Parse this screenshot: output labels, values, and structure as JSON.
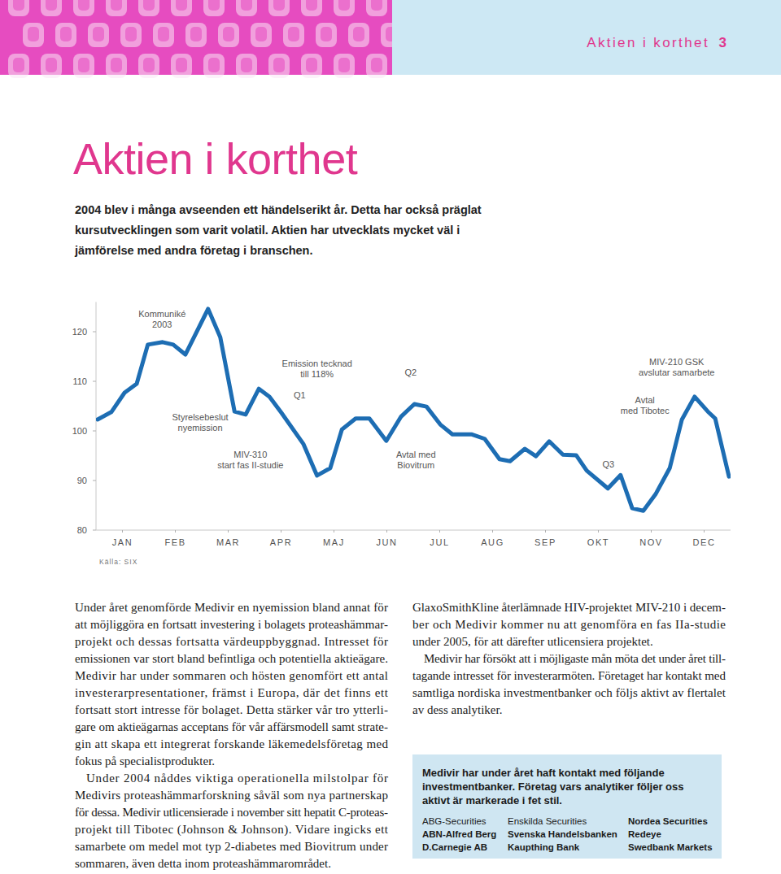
{
  "header": {
    "section": "Aktien i korthet",
    "page": "3"
  },
  "title": "Aktien i korthet",
  "intro": [
    "2004 blev i många avseenden ett händelserikt år. Detta har också präglat",
    "kursutvecklingen som varit volatil. Aktien har utvecklats mycket väl i",
    "jämförelse med andra företag i branschen."
  ],
  "chart_data": {
    "type": "line",
    "color": "#1d6db3",
    "x": [
      0.03,
      0.29,
      0.54,
      0.77,
      0.98,
      1.26,
      1.46,
      1.69,
      2.12,
      2.35,
      2.62,
      2.83,
      3.08,
      3.28,
      3.51,
      3.92,
      4.18,
      4.43,
      4.65,
      4.91,
      5.17,
      5.49,
      5.77,
      6.02,
      6.25,
      6.51,
      6.74,
      7.11,
      7.35,
      7.63,
      7.83,
      8.11,
      8.32,
      8.57,
      8.83,
      9.08,
      9.28,
      9.68,
      9.92,
      10.14,
      10.35,
      10.58,
      10.85,
      11.08,
      11.32,
      11.57,
      11.71,
      11.97
    ],
    "values": [
      102.3,
      103.8,
      107.7,
      109.5,
      117.4,
      117.9,
      117.4,
      115.4,
      124.6,
      118.9,
      103.9,
      103.3,
      108.5,
      106.9,
      103.6,
      97.4,
      91.0,
      92.5,
      100.3,
      102.5,
      102.5,
      98.0,
      102.9,
      105.4,
      104.9,
      101.3,
      99.3,
      99.3,
      98.4,
      94.3,
      93.9,
      96.4,
      94.9,
      97.9,
      95.2,
      95.1,
      92.0,
      88.4,
      91.1,
      84.4,
      83.9,
      87.2,
      92.5,
      102.3,
      106.9,
      103.9,
      102.5,
      90.8
    ],
    "xlim": [
      0,
      12
    ],
    "xticks": [
      {
        "value": 0.5,
        "label": "JAN"
      },
      {
        "value": 1.5,
        "label": "FEB"
      },
      {
        "value": 2.5,
        "label": "MAR"
      },
      {
        "value": 3.5,
        "label": "APR"
      },
      {
        "value": 4.5,
        "label": "MAJ"
      },
      {
        "value": 5.5,
        "label": "JUN"
      },
      {
        "value": 6.5,
        "label": "JUL"
      },
      {
        "value": 7.5,
        "label": "AUG"
      },
      {
        "value": 8.5,
        "label": "SEP"
      },
      {
        "value": 9.5,
        "label": "OKT"
      },
      {
        "value": 10.5,
        "label": "NOV"
      },
      {
        "value": 11.5,
        "label": "DEC"
      }
    ],
    "ylim": [
      80,
      126
    ],
    "yticks": [
      80,
      90,
      100,
      110,
      120
    ],
    "grid": false,
    "annotations": [
      {
        "text": [
          "Kommuniké",
          "2003"
        ],
        "x": 1.25,
        "y": 122.5
      },
      {
        "text": [
          "Styrelsebeslut",
          "nyemission"
        ],
        "x": 1.97,
        "y": 101.8
      },
      {
        "text": [
          "MIV-310",
          "start fas II-studie"
        ],
        "x": 2.92,
        "y": 94.1
      },
      {
        "text": [
          "Q1"
        ],
        "x": 3.85,
        "y": 107.2
      },
      {
        "text": [
          "Emission tecknad",
          "till 118%"
        ],
        "x": 4.18,
        "y": 112.5
      },
      {
        "text": [
          "Q2"
        ],
        "x": 5.95,
        "y": 111.8
      },
      {
        "text": [
          "Avtal med",
          "Biovitrum"
        ],
        "x": 6.05,
        "y": 94.1
      },
      {
        "text": [
          "Q3"
        ],
        "x": 9.69,
        "y": 93.3
      },
      {
        "text": [
          "Avtal",
          "med Tibotec"
        ],
        "x": 10.38,
        "y": 105.2
      },
      {
        "text": [
          "MIV-210  GSK",
          "avslutar samarbete"
        ],
        "x": 10.98,
        "y": 112.8
      }
    ],
    "source": "Källa: SIX"
  },
  "body": {
    "columns": [
      [
        {
          "lines": [
            "Under året genomförde Medivir en nyemission bland annat för",
            "att möjliggöra en fortsatt investering i bolagets proteashämmar-",
            "projekt och dessas fortsatta värdeuppbyggnad. Intresset för",
            "emissionen var stort bland befintliga och potentiella aktieägare.",
            "Medivir har under sommaren och hösten genomfört ett antal",
            "investerarpresentationer, främst i Europa, där det finns ett",
            "fortsatt stort intresse för bolaget. Detta stärker vår tro ytterli-",
            "gare om aktieägarnas acceptans för vår affärsmodell samt strate-",
            "gin att skapa ett integrerat forskande läkemedelsföretag med",
            "fokus på specialistprodukter."
          ]
        },
        {
          "lines": [
            "Under 2004 nåddes viktiga operationella milstolpar för",
            "Medivirs proteashämmarforskning såväl som nya partnerskap",
            "för dessa. Medivir utlicensierade i november sitt hepatit C-proteas-",
            "projekt till Tibotec (Johnson & Johnson). Vidare ingicks ett",
            "samarbete om medel mot typ 2-diabetes med Biovitrum under",
            "sommaren, även detta inom proteashämmarområdet."
          ]
        }
      ],
      [
        {
          "lines": [
            "GlaxoSmithKline återlämnade HIV-projektet MIV-210 i decem-",
            "ber och Medivir kommer nu att genomföra en fas IIa-studie",
            "under 2005, för att därefter utlicensiera projektet."
          ]
        },
        {
          "lines": [
            "Medivir har försökt att i möjligaste mån möta det under året till-",
            "tagande intresset för investerarmöten. Företaget har kontakt med",
            "samtliga nordiska investmentbanker och följs aktivt av flertalet",
            "av dess analytiker."
          ]
        }
      ]
    ]
  },
  "box": {
    "heading": [
      "Medivir har under året haft kontakt med följande",
      "investmentbanker. Företag vars analytiker följer oss",
      "aktivt är markerade i fet stil."
    ],
    "columns": [
      [
        {
          "text": "ABG-Securities",
          "bold": false
        },
        {
          "text": "ABN-Alfred Berg",
          "bold": true
        },
        {
          "text": "D.Carnegie AB",
          "bold": true
        }
      ],
      [
        {
          "text": "Enskilda Securities",
          "bold": false
        },
        {
          "text": "Svenska Handelsbanken",
          "bold": true
        },
        {
          "text": "Kaupthing Bank",
          "bold": true
        }
      ],
      [
        {
          "text": "Nordea Securities",
          "bold": true
        },
        {
          "text": "Redeye",
          "bold": true
        },
        {
          "text": "Swedbank Markets",
          "bold": true
        }
      ]
    ]
  }
}
